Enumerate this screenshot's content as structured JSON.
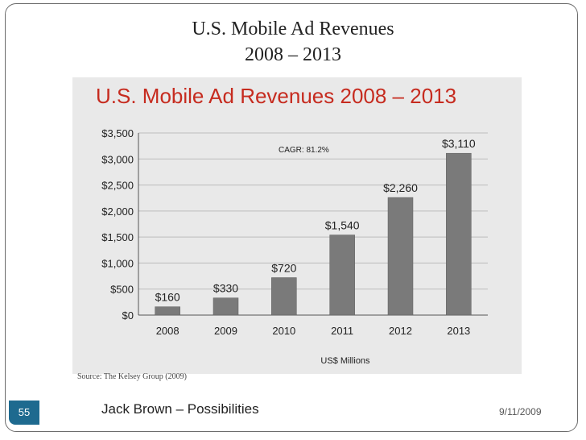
{
  "slide": {
    "title_line1": "U.S. Mobile Ad Revenues",
    "title_line2": "2008 – 2013",
    "source": "Source: The Kelsey Group (2009)",
    "page_number": "55",
    "footer_text": "Jack Brown – Possibilities",
    "date": "9/11/2009",
    "colors": {
      "heading": "#c62b1f",
      "bar": "#7a7a7a",
      "badge": "#1e6a8f",
      "panel": "#e9e9e9"
    }
  },
  "chart_data": {
    "type": "bar",
    "title": "U.S. Mobile Ad Revenues 2008 – 2013",
    "annotation": "CAGR: 81.2%",
    "categories": [
      "2008",
      "2009",
      "2010",
      "2011",
      "2012",
      "2013"
    ],
    "values": [
      160,
      330,
      720,
      1540,
      2260,
      3110
    ],
    "data_labels": [
      "$160",
      "$330",
      "$720",
      "$1,540",
      "$2,260",
      "$3,110"
    ],
    "xlabel": "US$ Millions",
    "ylabel": "",
    "ylim": [
      0,
      3500
    ],
    "yticks": [
      0,
      500,
      1000,
      1500,
      2000,
      2500,
      3000,
      3500
    ],
    "ytick_labels": [
      "$0",
      "$500",
      "$1,000",
      "$1,500",
      "$2,000",
      "$2,500",
      "$3,000",
      "$3,500"
    ],
    "grid": true,
    "legend": "none"
  }
}
